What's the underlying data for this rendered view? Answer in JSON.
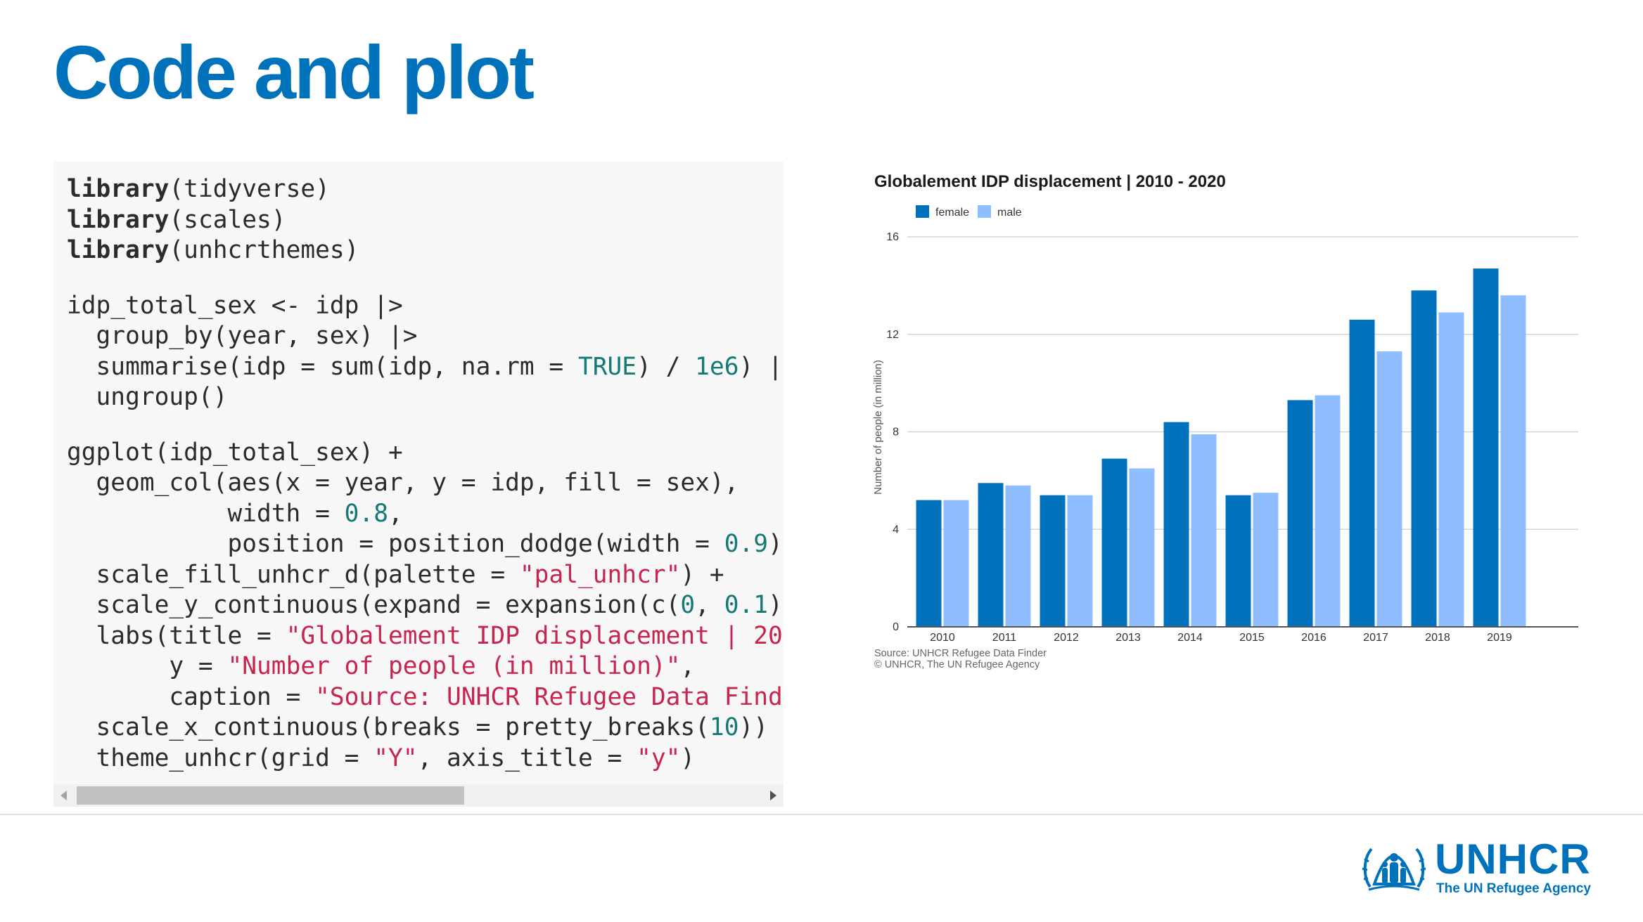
{
  "slide": {
    "title": "Code and plot"
  },
  "code": {
    "lines": [
      [
        {
          "t": "library",
          "c": "fn"
        },
        {
          "t": "(tidyverse)"
        }
      ],
      [
        {
          "t": "library",
          "c": "fn"
        },
        {
          "t": "(scales)"
        }
      ],
      [
        {
          "t": "library",
          "c": "fn"
        },
        {
          "t": "(unhcrthemes)"
        }
      ],
      null,
      [
        {
          "t": "idp_total_sex <- idp |>"
        }
      ],
      [
        {
          "t": "  group_by(year, sex) |>"
        }
      ],
      [
        {
          "t": "  summarise(idp = sum(idp, na.rm = "
        },
        {
          "t": "TRUE",
          "c": "kw"
        },
        {
          "t": ") / "
        },
        {
          "t": "1e6",
          "c": "num"
        },
        {
          "t": ") |"
        }
      ],
      [
        {
          "t": "  ungroup()"
        }
      ],
      null,
      [
        {
          "t": "ggplot(idp_total_sex) +"
        }
      ],
      [
        {
          "t": "  geom_col(aes(x = year, y = idp, fill = sex),"
        }
      ],
      [
        {
          "t": "           width = "
        },
        {
          "t": "0.8",
          "c": "num"
        },
        {
          "t": ","
        }
      ],
      [
        {
          "t": "           position = position_dodge(width = "
        },
        {
          "t": "0.9",
          "c": "num"
        },
        {
          "t": ")"
        }
      ],
      [
        {
          "t": "  scale_fill_unhcr_d(palette = "
        },
        {
          "t": "\"pal_unhcr\"",
          "c": "str"
        },
        {
          "t": ") +"
        }
      ],
      [
        {
          "t": "  scale_y_continuous(expand = expansion(c("
        },
        {
          "t": "0",
          "c": "num"
        },
        {
          "t": ", "
        },
        {
          "t": "0.1",
          "c": "num"
        },
        {
          "t": ")"
        }
      ],
      [
        {
          "t": "  labs(title = "
        },
        {
          "t": "\"Globalement IDP displacement | 20",
          "c": "str"
        }
      ],
      [
        {
          "t": "       y = "
        },
        {
          "t": "\"Number of people (in million)\"",
          "c": "str"
        },
        {
          "t": ","
        }
      ],
      [
        {
          "t": "       caption = "
        },
        {
          "t": "\"Source: UNHCR Refugee Data Find",
          "c": "str"
        }
      ],
      [
        {
          "t": "  scale_x_continuous(breaks = pretty_breaks("
        },
        {
          "t": "10",
          "c": "num"
        },
        {
          "t": "))"
        }
      ],
      [
        {
          "t": "  theme_unhcr(grid = "
        },
        {
          "t": "\"Y\"",
          "c": "str"
        },
        {
          "t": ", axis_title = "
        },
        {
          "t": "\"y\"",
          "c": "str"
        },
        {
          "t": ")"
        }
      ]
    ]
  },
  "chart_data": {
    "type": "bar",
    "title": "Globalement IDP displacement | 2010 - 2020",
    "xlabel": "",
    "ylabel": "Number of people (in million)",
    "categories": [
      "2010",
      "2011",
      "2012",
      "2013",
      "2014",
      "2015",
      "2016",
      "2017",
      "2018",
      "2019"
    ],
    "series": [
      {
        "name": "female",
        "color": "#0072BC",
        "values": [
          5.2,
          5.9,
          5.4,
          6.9,
          8.4,
          5.4,
          9.3,
          12.6,
          13.8,
          14.7
        ]
      },
      {
        "name": "male",
        "color": "#8EBEFF",
        "values": [
          5.2,
          5.8,
          5.4,
          6.5,
          7.9,
          5.5,
          9.5,
          11.3,
          12.9,
          13.6
        ]
      }
    ],
    "ylim": [
      0,
      16
    ],
    "yticks": [
      0,
      4,
      8,
      12,
      16
    ],
    "grid": "y",
    "legend": "top-left",
    "caption": [
      "Source: UNHCR Refugee Data Finder",
      "© UNHCR, The UN Refugee Agency"
    ]
  },
  "logo": {
    "wordmark": "UNHCR",
    "tagline": "The UN Refugee Agency",
    "color": "#0072BC"
  }
}
